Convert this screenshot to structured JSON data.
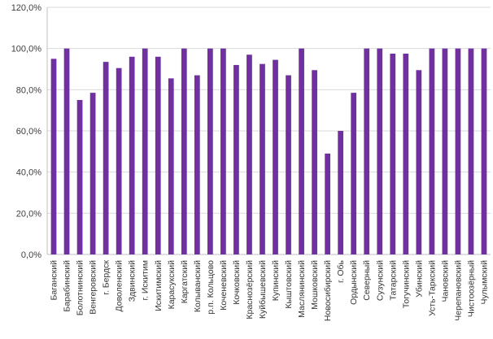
{
  "chart_data": {
    "type": "bar",
    "categories": [
      "Баганский",
      "Барабинский",
      "Болотнинский",
      "Венгеровский",
      "г. Бердск",
      "Доволенский",
      "Здвинский",
      "г. Искитим",
      "Искитимский",
      "Карасукский",
      "Каргатский",
      "Колыванский",
      "р.п. Кольцово",
      "Коченевский",
      "Кочковский",
      "Краснозёрский",
      "Куйбышевский",
      "Купинский",
      "Кыштовский",
      "Маслянинский",
      "Мошковский",
      "Новосибирский",
      "г. Обь",
      "Ордынский",
      "Северный",
      "Сузунский",
      "Татарский",
      "Тогучинский",
      "Убинский",
      "Усть-Таркский",
      "Чановский",
      "Черепановский",
      "Чистоозёрный",
      "Чулымский"
    ],
    "values": [
      95,
      100,
      75,
      78.5,
      93.5,
      90.5,
      96,
      100,
      96,
      85.5,
      100,
      87,
      100,
      100,
      92,
      97,
      92.5,
      94.5,
      87,
      100,
      89.5,
      49,
      60,
      78.5,
      100,
      100,
      97.5,
      97.5,
      89.5,
      100,
      100,
      100,
      100,
      100
    ],
    "ylim": [
      0,
      120
    ],
    "yticks": [
      0,
      20,
      40,
      60,
      80,
      100,
      120
    ],
    "ytick_labels": [
      "0,0%",
      "20,0%",
      "40,0%",
      "60,0%",
      "80,0%",
      "100,0%",
      "120,0%"
    ],
    "grid": true,
    "bar_color": "#7030a0",
    "title": "",
    "xlabel": "",
    "ylabel": ""
  }
}
